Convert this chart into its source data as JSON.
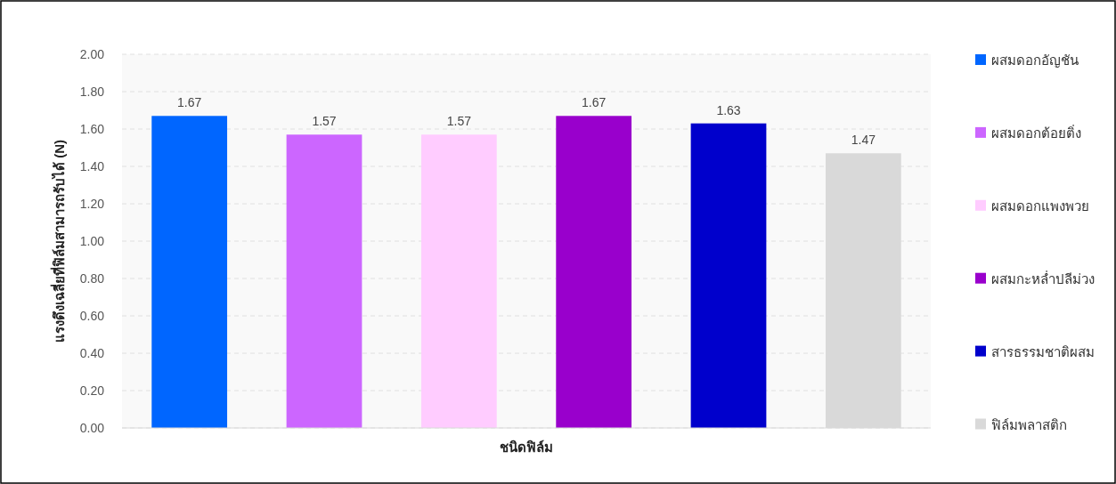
{
  "chart_data": {
    "type": "bar",
    "xlabel": "ชนิดฟิล์ม",
    "ylabel": "แรงดึงเฉลี่ยที่ฟิล์มสามารถรับได้ (N)",
    "categories": [
      null,
      null,
      null,
      null,
      null,
      null
    ],
    "series": [
      {
        "name": "ผสมดอกอัญชัน",
        "color": "#0066ff",
        "values": [
          1.67,
          null,
          null,
          null,
          null,
          null
        ]
      },
      {
        "name": "ผสมดอกต้อยติ่ง",
        "color": "#cc66ff",
        "values": [
          null,
          1.57,
          null,
          null,
          null,
          null
        ]
      },
      {
        "name": "ผสมดอกแพงพวย",
        "color": "#ffccff",
        "values": [
          null,
          null,
          1.57,
          null,
          null,
          null
        ]
      },
      {
        "name": "ผสมกะหล่ำปลีม่วง",
        "color": "#9900cc",
        "values": [
          null,
          null,
          null,
          1.67,
          null,
          null
        ]
      },
      {
        "name": "สารธรรมชาติผสม",
        "color": "#0000cc",
        "values": [
          null,
          null,
          null,
          null,
          1.63,
          null
        ]
      },
      {
        "name": "ฟิล์มพลาสติก",
        "color": "#d9d9d9",
        "values": [
          null,
          null,
          null,
          null,
          null,
          1.47
        ]
      }
    ],
    "ylim": [
      0,
      2
    ],
    "yticks": [
      {
        "value": 0,
        "label": "0.00"
      },
      {
        "value": 0.2,
        "label": "0.20"
      },
      {
        "value": 0.4,
        "label": "0.40"
      },
      {
        "value": 0.6,
        "label": "0.60"
      },
      {
        "value": 0.8,
        "label": "0.80"
      },
      {
        "value": 1,
        "label": "1.00"
      },
      {
        "value": 1.2,
        "label": "1.20"
      },
      {
        "value": 1.4,
        "label": "1.40"
      },
      {
        "value": 1.6,
        "label": "1.60"
      },
      {
        "value": 1.8,
        "label": "1.80"
      },
      {
        "value": 2,
        "label": "2.00"
      }
    ],
    "grid": "y",
    "legend": "right",
    "data_labels": true,
    "tick_labels": "y"
  }
}
